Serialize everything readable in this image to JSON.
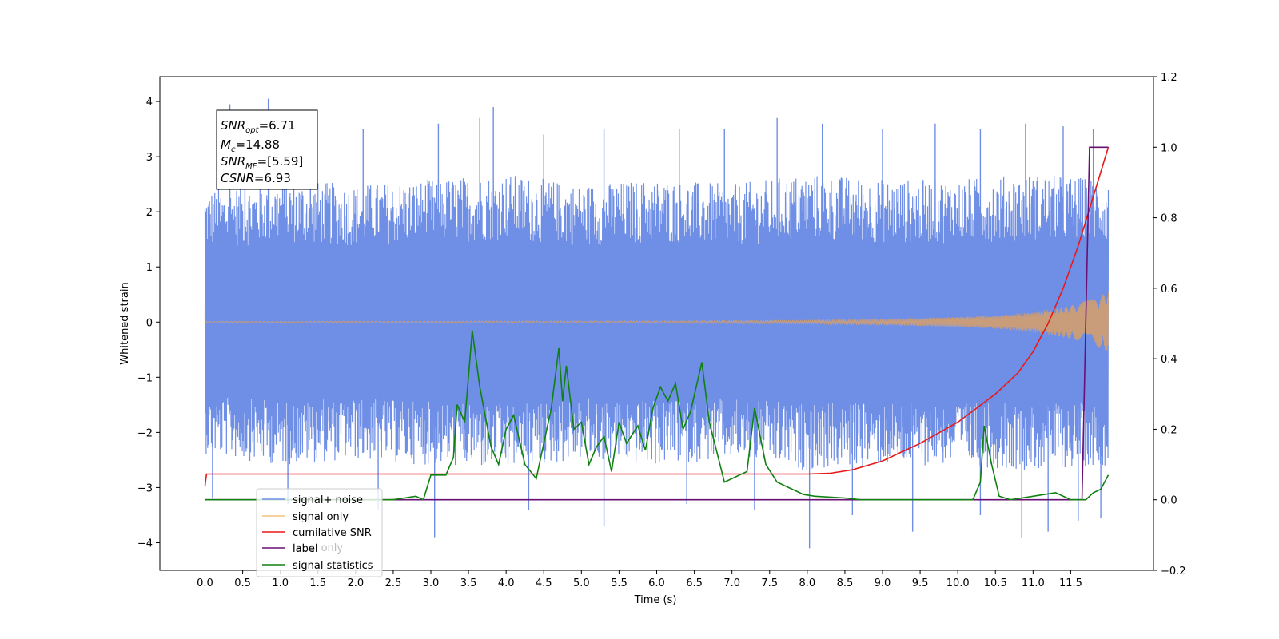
{
  "chart_data": {
    "type": "line",
    "xlabel": "Time (s)",
    "ylabel": "Whitened strain",
    "xlim": [
      -0.6,
      12.6
    ],
    "ylim_left": [
      -4.5,
      4.45
    ],
    "ylim_right": [
      -0.2,
      1.2
    ],
    "x_ticks": [
      "0.0",
      "0.5",
      "1.0",
      "1.5",
      "2.0",
      "2.5",
      "3.0",
      "3.5",
      "4.0",
      "4.5",
      "5.0",
      "5.5",
      "6.0",
      "6.5",
      "7.0",
      "7.5",
      "8.0",
      "8.5",
      "9.0",
      "9.5",
      "10.0",
      "10.5",
      "11.0",
      "11.5"
    ],
    "y_ticks_left": [
      "4",
      "3",
      "2",
      "1",
      "0",
      "−1",
      "−2",
      "−3",
      "−4"
    ],
    "y_ticks_right": [
      "1.2",
      "1.0",
      "0.8",
      "0.6",
      "0.4",
      "0.2",
      "0.0",
      "−0.2"
    ],
    "stats_box": {
      "line1": {
        "base": "SNR",
        "sub": "opt",
        "value": "=6.71"
      },
      "line2": {
        "base": "M",
        "sub": "c",
        "value": "=14.88"
      },
      "line3": {
        "base": "SNR",
        "sub": "MF",
        "value": "=[5.59]"
      },
      "line4": {
        "base": "CSNR",
        "sub": "",
        "value": "=6.93"
      }
    },
    "legend": {
      "placement": "lower-left",
      "entries": [
        "signal+ noise",
        "signal only",
        "cumilative SNR",
        "label",
        "signal statistics"
      ],
      "hidden_entry": "label only"
    },
    "series": [
      {
        "name": "signal+ noise",
        "axis": "left",
        "color": "#6f8fe6",
        "x_range": [
          0.0,
          12.0
        ],
        "envelope_upper": [
          [
            0.0,
            2.4
          ],
          [
            0.5,
            2.5
          ],
          [
            1.0,
            2.6
          ],
          [
            2.0,
            2.5
          ],
          [
            3.0,
            2.6
          ],
          [
            4.0,
            2.7
          ],
          [
            5.0,
            2.5
          ],
          [
            6.0,
            2.6
          ],
          [
            7.0,
            2.5
          ],
          [
            8.0,
            2.7
          ],
          [
            9.0,
            2.6
          ],
          [
            10.0,
            2.6
          ],
          [
            11.0,
            2.7
          ],
          [
            12.0,
            2.6
          ]
        ],
        "envelope_lower": [
          [
            0.0,
            -2.4
          ],
          [
            0.5,
            -2.5
          ],
          [
            1.0,
            -2.6
          ],
          [
            2.0,
            -2.5
          ],
          [
            3.0,
            -2.6
          ],
          [
            4.0,
            -2.7
          ],
          [
            5.0,
            -2.5
          ],
          [
            6.0,
            -2.6
          ],
          [
            7.0,
            -2.5
          ],
          [
            8.0,
            -2.7
          ],
          [
            9.0,
            -2.6
          ],
          [
            10.0,
            -2.6
          ],
          [
            11.0,
            -2.7
          ],
          [
            12.0,
            -2.6
          ]
        ],
        "spikes_up": [
          [
            0.33,
            3.95
          ],
          [
            0.53,
            3.6
          ],
          [
            0.84,
            4.05
          ],
          [
            1.4,
            3.2
          ],
          [
            2.1,
            3.5
          ],
          [
            3.1,
            3.6
          ],
          [
            3.65,
            3.7
          ],
          [
            3.83,
            3.9
          ],
          [
            4.5,
            3.4
          ],
          [
            5.3,
            3.5
          ],
          [
            6.3,
            3.5
          ],
          [
            6.9,
            3.5
          ],
          [
            7.6,
            3.7
          ],
          [
            8.2,
            3.6
          ],
          [
            9.0,
            3.5
          ],
          [
            9.7,
            3.6
          ],
          [
            10.3,
            3.5
          ],
          [
            10.9,
            3.6
          ],
          [
            11.4,
            3.55
          ],
          [
            11.8,
            3.5
          ]
        ],
        "spikes_down": [
          [
            0.1,
            -3.2
          ],
          [
            1.1,
            -3.3
          ],
          [
            2.3,
            -3.4
          ],
          [
            3.05,
            -3.9
          ],
          [
            4.3,
            -3.4
          ],
          [
            5.3,
            -3.7
          ],
          [
            6.4,
            -3.3
          ],
          [
            7.3,
            -3.4
          ],
          [
            8.03,
            -4.1
          ],
          [
            8.6,
            -3.5
          ],
          [
            9.4,
            -3.8
          ],
          [
            10.3,
            -3.5
          ],
          [
            10.85,
            -3.9
          ],
          [
            11.2,
            -3.8
          ],
          [
            11.6,
            -3.6
          ],
          [
            11.9,
            -3.55
          ]
        ]
      },
      {
        "name": "signal only",
        "axis": "left",
        "color": "#d9a066",
        "x_range": [
          0.0,
          12.0
        ],
        "amplitude": [
          [
            0.0,
            0.01
          ],
          [
            6.0,
            0.02
          ],
          [
            8.0,
            0.03
          ],
          [
            9.0,
            0.05
          ],
          [
            10.0,
            0.09
          ],
          [
            10.5,
            0.12
          ],
          [
            11.0,
            0.18
          ],
          [
            11.5,
            0.3
          ],
          [
            11.8,
            0.42
          ],
          [
            12.0,
            0.55
          ]
        ]
      },
      {
        "name": "cumilative SNR",
        "axis": "right",
        "color": "#e8191a",
        "points": [
          [
            0.0,
            0.04
          ],
          [
            0.02,
            0.073
          ],
          [
            8.0,
            0.073
          ],
          [
            8.3,
            0.075
          ],
          [
            8.6,
            0.085
          ],
          [
            9.0,
            0.11
          ],
          [
            9.5,
            0.16
          ],
          [
            10.0,
            0.22
          ],
          [
            10.5,
            0.3
          ],
          [
            10.8,
            0.36
          ],
          [
            11.0,
            0.42
          ],
          [
            11.2,
            0.5
          ],
          [
            11.4,
            0.6
          ],
          [
            11.6,
            0.72
          ],
          [
            11.8,
            0.86
          ],
          [
            12.0,
            1.0
          ]
        ]
      },
      {
        "name": "label",
        "axis": "right",
        "color": "#6a0f73",
        "points": [
          [
            0.0,
            0.0
          ],
          [
            11.65,
            0.0
          ],
          [
            11.75,
            1.0
          ],
          [
            12.0,
            1.0
          ]
        ]
      },
      {
        "name": "signal statistics",
        "axis": "right",
        "color": "#108010",
        "points": [
          [
            0.0,
            0.0
          ],
          [
            2.5,
            0.0
          ],
          [
            2.65,
            0.005
          ],
          [
            2.8,
            0.01
          ],
          [
            2.9,
            0.0
          ],
          [
            3.0,
            0.07
          ],
          [
            3.2,
            0.07
          ],
          [
            3.3,
            0.12
          ],
          [
            3.35,
            0.27
          ],
          [
            3.45,
            0.22
          ],
          [
            3.55,
            0.48
          ],
          [
            3.65,
            0.32
          ],
          [
            3.8,
            0.15
          ],
          [
            3.9,
            0.1
          ],
          [
            4.0,
            0.2
          ],
          [
            4.1,
            0.24
          ],
          [
            4.25,
            0.1
          ],
          [
            4.4,
            0.06
          ],
          [
            4.6,
            0.26
          ],
          [
            4.7,
            0.43
          ],
          [
            4.75,
            0.28
          ],
          [
            4.8,
            0.38
          ],
          [
            4.9,
            0.2
          ],
          [
            5.0,
            0.22
          ],
          [
            5.1,
            0.1
          ],
          [
            5.2,
            0.15
          ],
          [
            5.3,
            0.18
          ],
          [
            5.4,
            0.08
          ],
          [
            5.5,
            0.22
          ],
          [
            5.6,
            0.16
          ],
          [
            5.75,
            0.21
          ],
          [
            5.85,
            0.14
          ],
          [
            5.95,
            0.26
          ],
          [
            6.05,
            0.32
          ],
          [
            6.15,
            0.28
          ],
          [
            6.25,
            0.33
          ],
          [
            6.35,
            0.2
          ],
          [
            6.45,
            0.25
          ],
          [
            6.6,
            0.39
          ],
          [
            6.7,
            0.22
          ],
          [
            6.9,
            0.05
          ],
          [
            7.0,
            0.06
          ],
          [
            7.1,
            0.07
          ],
          [
            7.2,
            0.08
          ],
          [
            7.3,
            0.26
          ],
          [
            7.45,
            0.1
          ],
          [
            7.6,
            0.05
          ],
          [
            7.8,
            0.03
          ],
          [
            7.95,
            0.015
          ],
          [
            8.1,
            0.01
          ],
          [
            8.5,
            0.005
          ],
          [
            8.7,
            0.0
          ],
          [
            10.2,
            0.0
          ],
          [
            10.3,
            0.05
          ],
          [
            10.35,
            0.21
          ],
          [
            10.45,
            0.1
          ],
          [
            10.55,
            0.01
          ],
          [
            10.7,
            0.0
          ],
          [
            11.0,
            0.01
          ],
          [
            11.3,
            0.02
          ],
          [
            11.5,
            0.0
          ],
          [
            11.7,
            0.0
          ],
          [
            11.8,
            0.02
          ],
          [
            11.9,
            0.03
          ],
          [
            12.0,
            0.07
          ]
        ]
      }
    ]
  }
}
